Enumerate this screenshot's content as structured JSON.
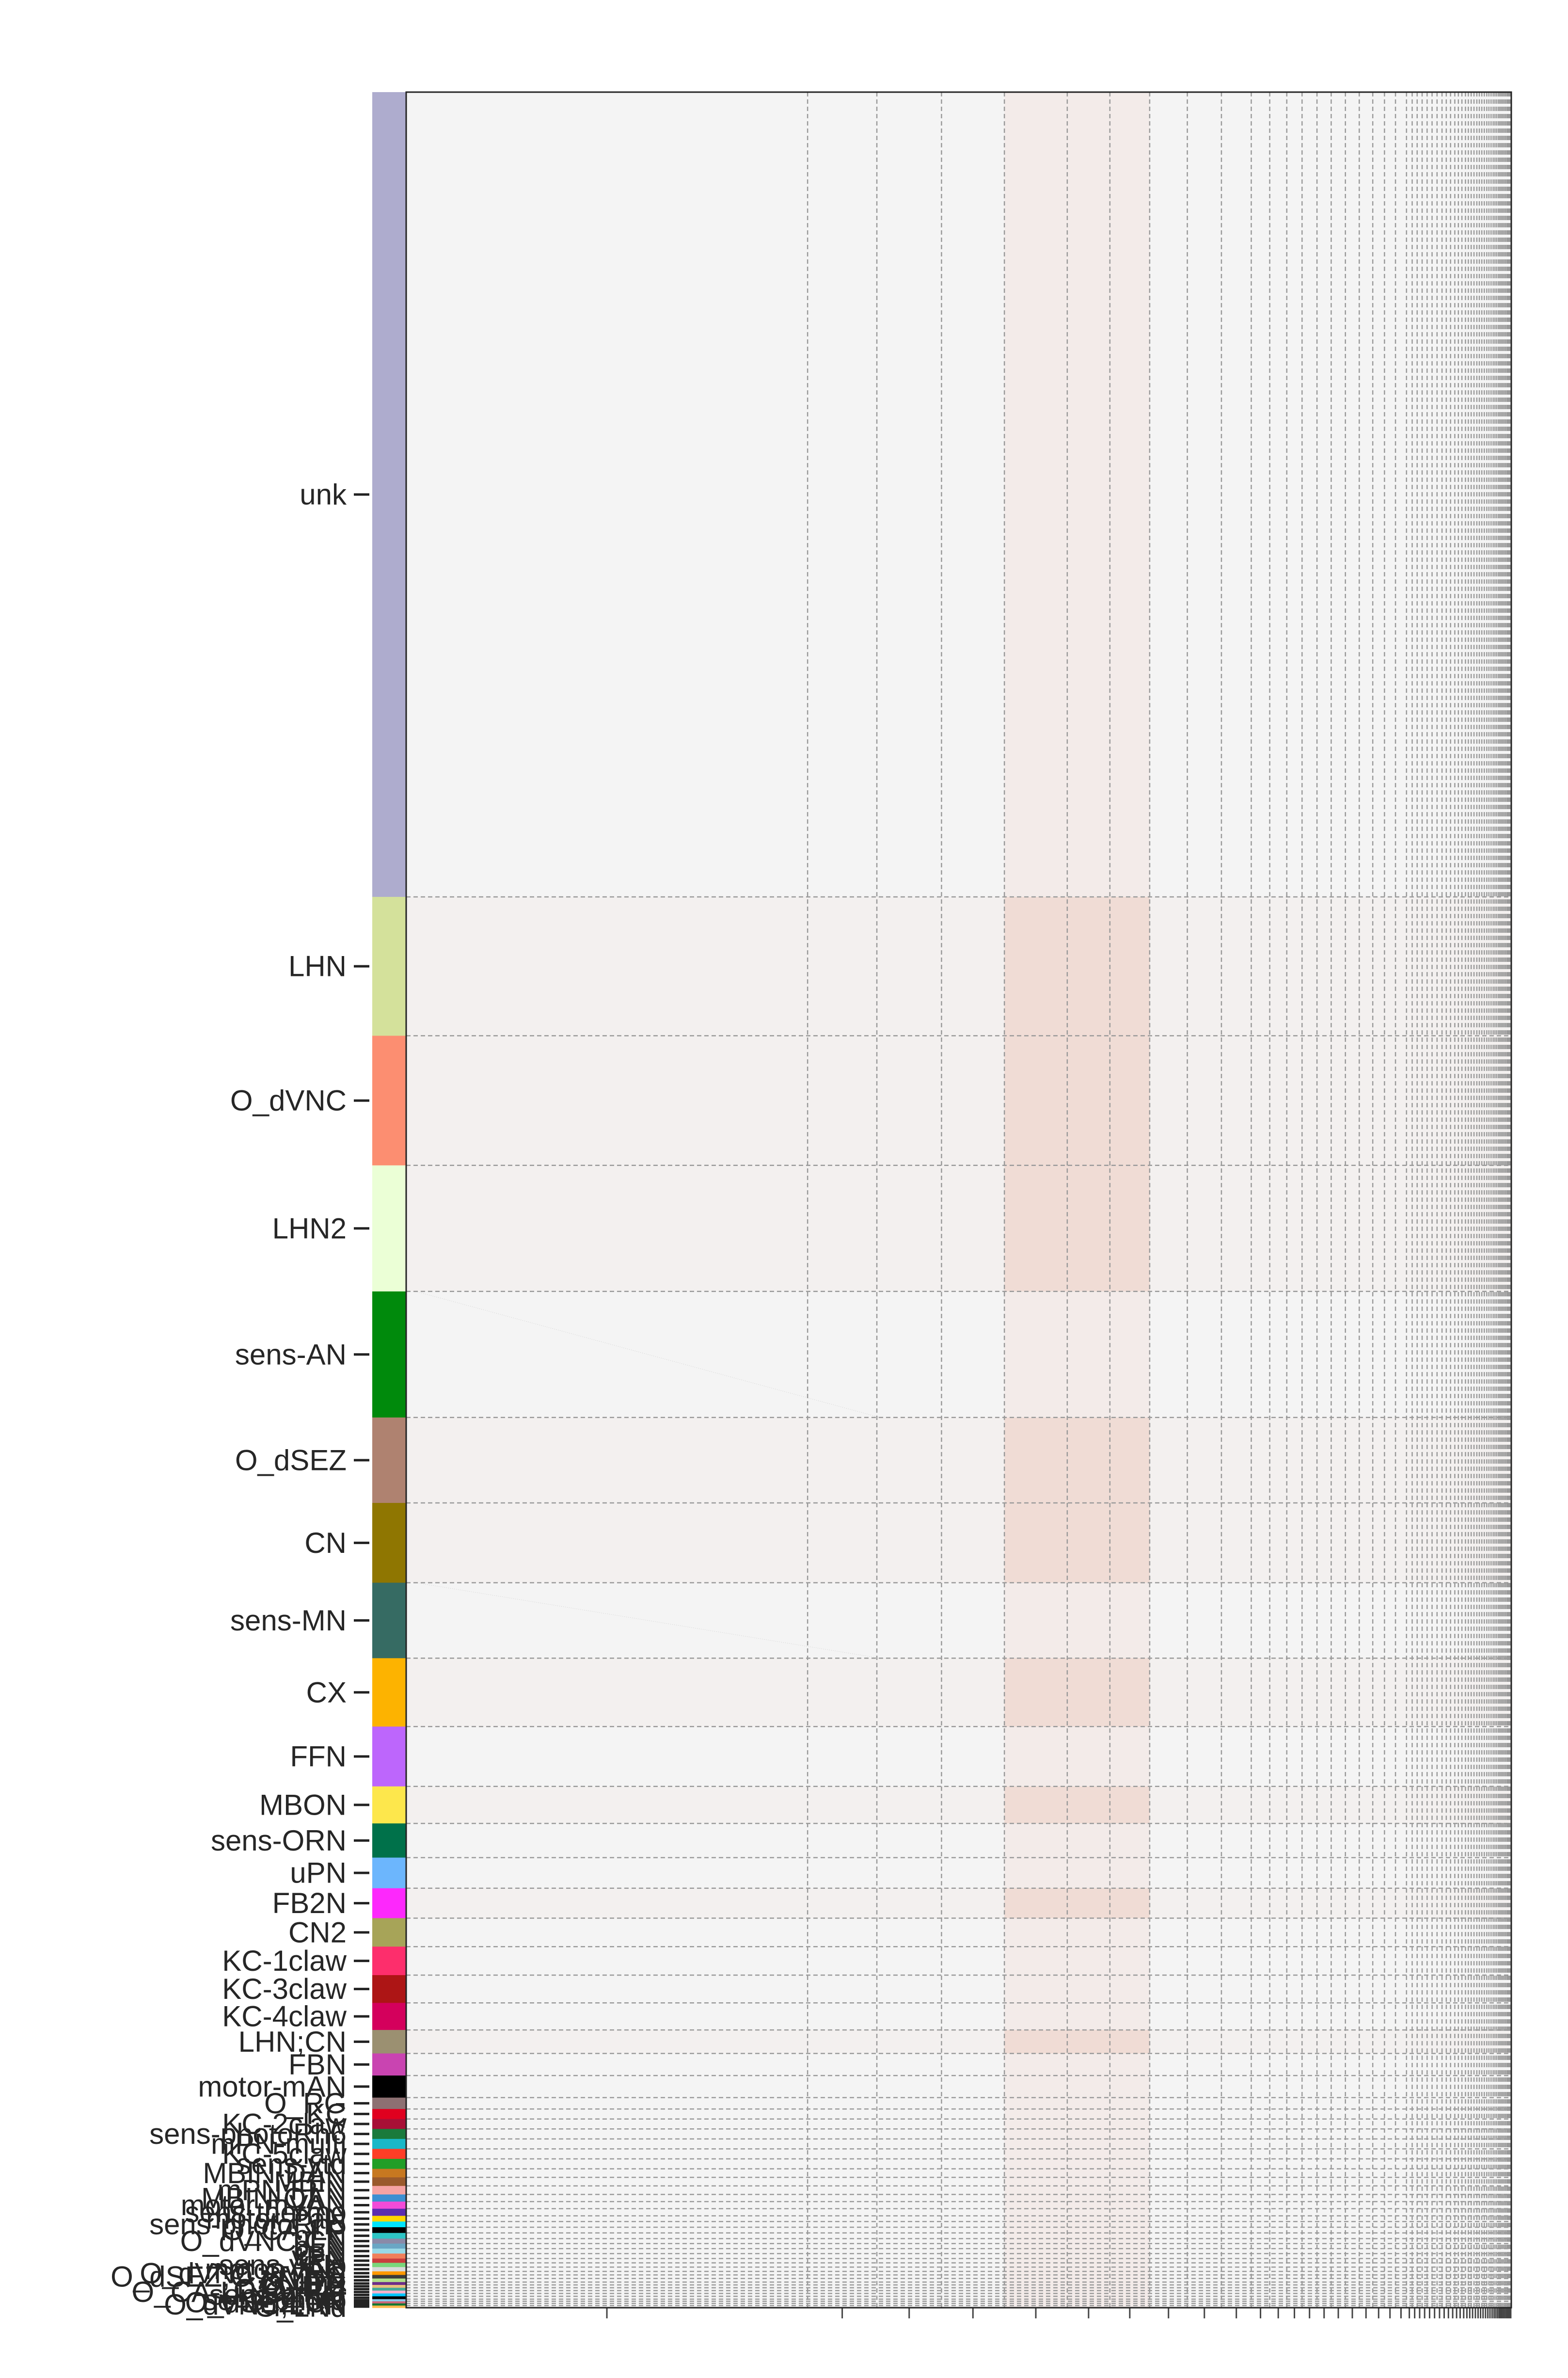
{
  "chart_data": {
    "type": "heatmap",
    "title": "",
    "xlabel": "",
    "ylabel": "",
    "background_color": "#f4f4f4",
    "grid": "dashed lines at group boundaries",
    "row_groups": [
      {
        "label": "unk",
        "rows": 1130,
        "color": "#aeacce"
      },
      {
        "label": "LHN",
        "rows": 195,
        "color": "#d4e19b"
      },
      {
        "label": "O_dVNC",
        "rows": 182,
        "color": "#fc8e71"
      },
      {
        "label": "LHN2",
        "rows": 177,
        "color": "#ebffd6"
      },
      {
        "label": "sens-AN",
        "rows": 177,
        "color": "#008a0c"
      },
      {
        "label": "O_dSEZ",
        "rows": 120,
        "color": "#af8270"
      },
      {
        "label": "CN",
        "rows": 112,
        "color": "#8f7601"
      },
      {
        "label": "sens-MN",
        "rows": 106,
        "color": "#366b63"
      },
      {
        "label": "CX",
        "rows": 96,
        "color": "#fdb300"
      },
      {
        "label": "FFN",
        "rows": 84,
        "color": "#bd66fc"
      },
      {
        "label": "MBON",
        "rows": 52,
        "color": "#fde74c"
      },
      {
        "label": "sens-ORN",
        "rows": 48,
        "color": "#00714a"
      },
      {
        "label": "uPN",
        "rows": 43,
        "color": "#6cb6fd"
      },
      {
        "label": "FB2N",
        "rows": 42,
        "color": "#fd28fc"
      },
      {
        "label": "CN2",
        "rows": 40,
        "color": "#a7a458"
      },
      {
        "label": "KC-1claw",
        "rows": 40,
        "color": "#fd2e6c"
      },
      {
        "label": "KC-3claw",
        "rows": 39,
        "color": "#ad1515"
      },
      {
        "label": "KC-4claw",
        "rows": 38,
        "color": "#d4005c"
      },
      {
        "label": "LHN;CN",
        "rows": 33,
        "color": "#9b9071"
      },
      {
        "label": "FBN",
        "rows": 31,
        "color": "#c944b1"
      },
      {
        "label": "motor-mAN",
        "rows": 31,
        "color": "#000000"
      },
      {
        "label": "O_RG",
        "rows": 16,
        "color": "#8d7072"
      },
      {
        "label": "KC",
        "rows": 14,
        "color": "#e0001f"
      },
      {
        "label": "KC-2claw",
        "rows": 14,
        "color": "#a80f36"
      },
      {
        "label": "sens-photoRh6",
        "rows": 14,
        "color": "#1a7a3c"
      },
      {
        "label": "mPN-multi",
        "rows": 14,
        "color": "#1ab8c8"
      },
      {
        "label": "KC-5claw",
        "rows": 14,
        "color": "#ff3d26"
      },
      {
        "label": "sens-vtd",
        "rows": 14,
        "color": "#219e27"
      },
      {
        "label": "MBIN-DAN",
        "rows": 12,
        "color": "#c77820"
      },
      {
        "label": "MBIN",
        "rows": 12,
        "color": "#9a5a2c"
      },
      {
        "label": "mPN;FFN",
        "rows": 12,
        "color": "#f5a3a3"
      },
      {
        "label": "MBIN-OAN",
        "rows": 10,
        "color": "#3d8fd1"
      },
      {
        "label": "motor-mVAN",
        "rows": 10,
        "color": "#f24bd8"
      },
      {
        "label": "sens-thermo",
        "rows": 10,
        "color": "#5c2db0"
      },
      {
        "label": "motor-PaN",
        "rows": 8,
        "color": "#ffd500"
      },
      {
        "label": "sens-photoRh5",
        "rows": 8,
        "color": "#00e5ff"
      },
      {
        "label": "O_CA-LP",
        "rows": 8,
        "color": "#000000"
      },
      {
        "label": "pLN",
        "rows": 8,
        "color": "#2ec4c4"
      },
      {
        "label": "O_dVNC;CN",
        "rows": 7,
        "color": "#8a8aa8"
      },
      {
        "label": "bLN",
        "rows": 7,
        "color": "#6aa6c4"
      },
      {
        "label": "cLN",
        "rows": 7,
        "color": "#99d9e6"
      },
      {
        "label": "vPN",
        "rows": 7,
        "color": "#f07f5a"
      },
      {
        "label": "tPN",
        "rows": 6,
        "color": "#c93d3d"
      },
      {
        "label": "sens-ANp",
        "rows": 6,
        "color": "#7ad67a"
      },
      {
        "label": "motor-VAN",
        "rows": 6,
        "color": "#d9d9d9"
      },
      {
        "label": "O_dVNC;O_RG",
        "rows": 5,
        "color": "#ff9900"
      },
      {
        "label": "O_dSEZ;O_dVNC",
        "rows": 5,
        "color": "#3b3b3b"
      },
      {
        "label": "LN-TN",
        "rows": 5,
        "color": "#b2df8a"
      },
      {
        "label": "O_IPC",
        "rows": 4,
        "color": "#6d2e8a"
      },
      {
        "label": "O_ITP",
        "rows": 4,
        "color": "#e8c07d"
      },
      {
        "label": "O_DH44",
        "rows": 4,
        "color": "#44aa99"
      },
      {
        "label": "O_CA-LP;O_RG",
        "rows": 4,
        "color": "#f5b3cc"
      },
      {
        "label": "sens-other",
        "rows": 4,
        "color": "#00c8ff"
      },
      {
        "label": "LN-other",
        "rows": 4,
        "color": "#000000"
      },
      {
        "label": "sens-photo",
        "rows": 3,
        "color": "#88ccee"
      },
      {
        "label": "O_dSEZ;CN",
        "rows": 3,
        "color": "#cc6677"
      },
      {
        "label": "O_dVNC;LHN",
        "rows": 3,
        "color": "#117733"
      },
      {
        "label": "O_LNd",
        "rows": 3,
        "color": "#ffb84d"
      }
    ],
    "columns": "same neuron order and grouping as rows (square adjacency matrix)",
    "value_color_low": "#f4f4f4",
    "value_color_high": "#e8551f",
    "dense_column_groups": [
      "sens-AN",
      "O_dSEZ",
      "CN"
    ],
    "dense_row_groups": [
      "LHN",
      "O_dVNC",
      "LHN2",
      "O_dSEZ",
      "CN",
      "CX",
      "MBON",
      "FB2N",
      "LHN;CN"
    ]
  }
}
